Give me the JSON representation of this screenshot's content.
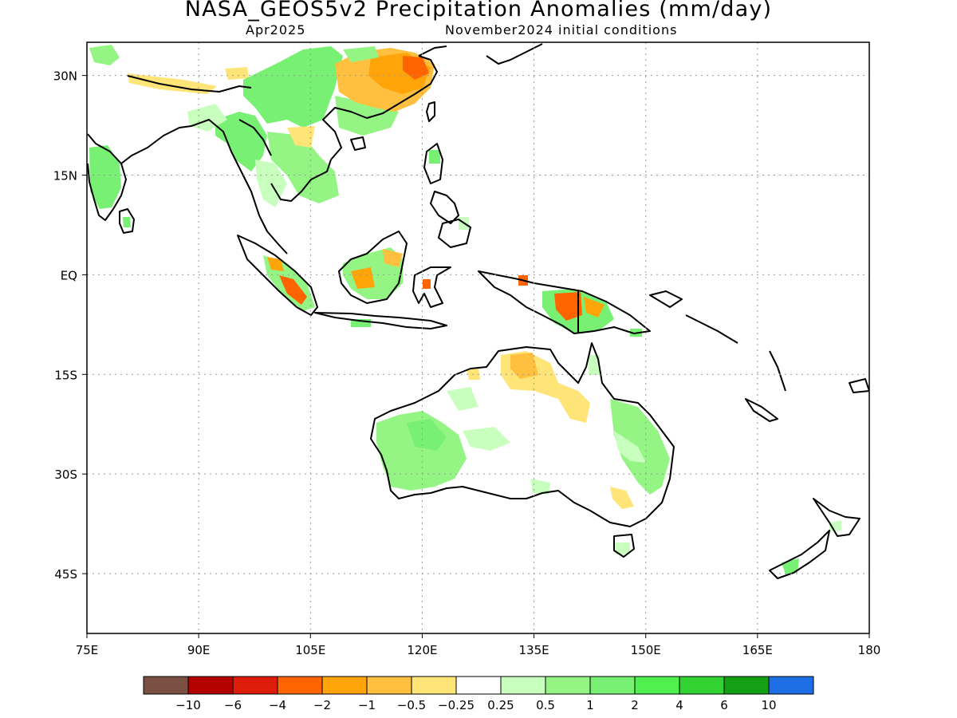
{
  "title": "NASA_GEOS5v2 Precipitation Anomalies (mm/day)",
  "subtitle_left": "Apr2025",
  "subtitle_right": "November2024 initial conditions",
  "map": {
    "lon_range": [
      75,
      180
    ],
    "lat_range": [
      -54,
      35
    ],
    "grid": "dotted",
    "y_ticks": [
      {
        "lat": 30,
        "label": "30N"
      },
      {
        "lat": 15,
        "label": "15N"
      },
      {
        "lat": 0,
        "label": "EQ"
      },
      {
        "lat": -15,
        "label": "15S"
      },
      {
        "lat": -30,
        "label": "30S"
      },
      {
        "lat": -45,
        "label": "45S"
      }
    ],
    "x_ticks": [
      {
        "lon": 75,
        "label": "75E"
      },
      {
        "lon": 90,
        "label": "90E"
      },
      {
        "lon": 105,
        "label": "105E"
      },
      {
        "lon": 120,
        "label": "120E"
      },
      {
        "lon": 135,
        "label": "135E"
      },
      {
        "lon": 150,
        "label": "150E"
      },
      {
        "lon": 165,
        "label": "165E"
      },
      {
        "lon": 180,
        "label": "180"
      }
    ]
  },
  "colorbar": {
    "colors": [
      "#7a4f44",
      "#b50000",
      "#de1c0a",
      "#ff6400",
      "#ffa50a",
      "#ffc040",
      "#ffe478",
      "#ffffff",
      "#c8ffbe",
      "#94f584",
      "#78f073",
      "#50f050",
      "#32d232",
      "#14a014",
      "#1e6ee6"
    ],
    "labels": [
      "−10",
      "−6",
      "−4",
      "−2",
      "−1",
      "−0.5",
      "−0.25",
      "0.25",
      "0.5",
      "1",
      "2",
      "4",
      "6",
      "10"
    ]
  },
  "anomaly_colors": {
    "c_wet_light": "#c8ffbe",
    "c_wet_mid": "#94f584",
    "c_wet": "#78f073",
    "c_wet_strong": "#50f050",
    "c_dry_light": "#ffe478",
    "c_dry": "#ffc040",
    "c_dry_mid": "#ffa50a",
    "c_dry_strong": "#ff6400"
  }
}
